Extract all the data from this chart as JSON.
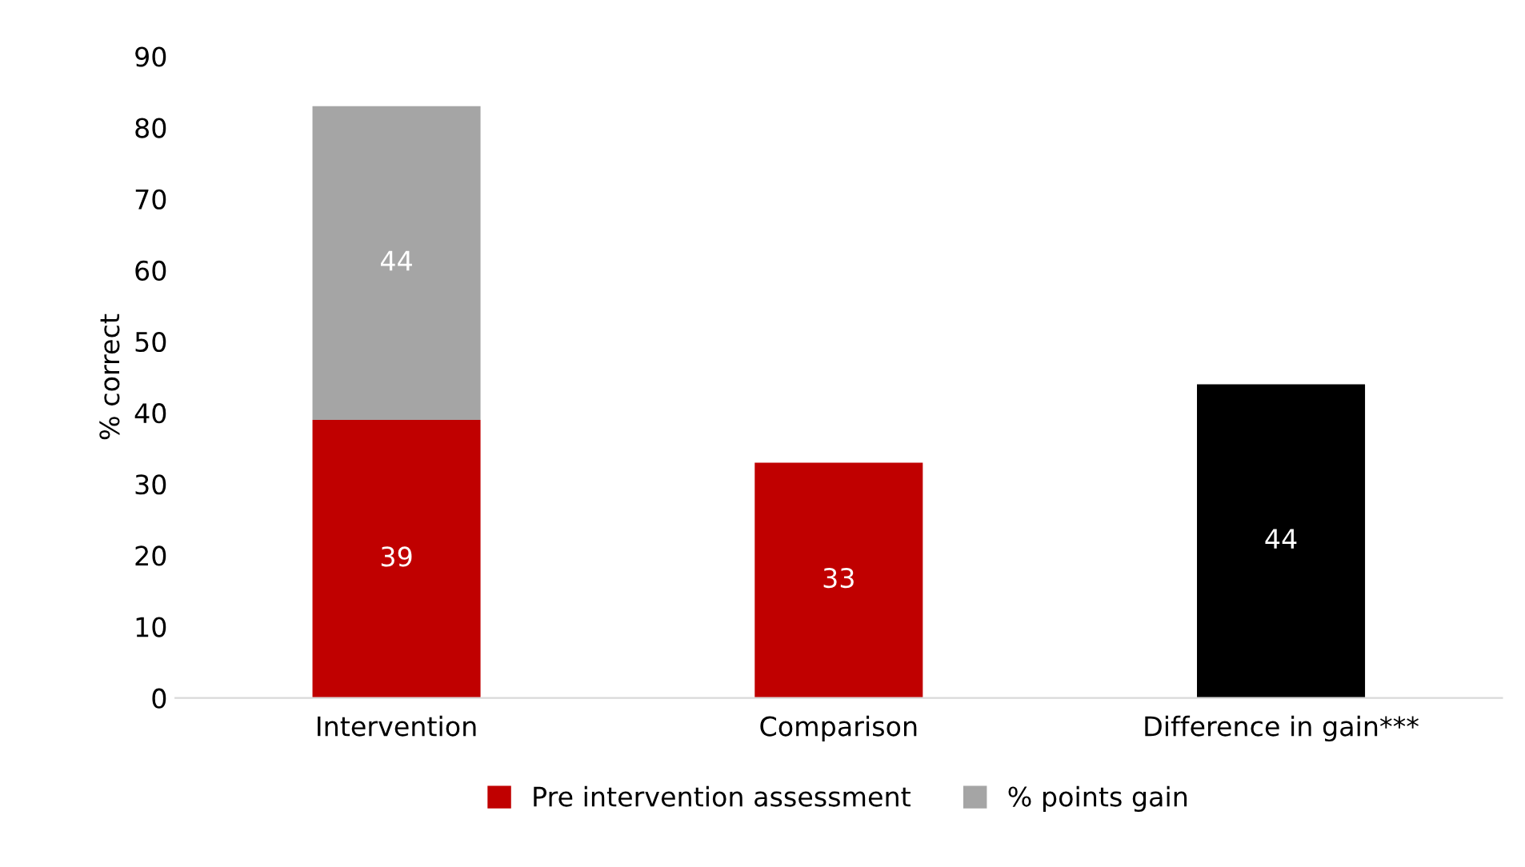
{
  "chart_data": {
    "type": "bar",
    "stacked": true,
    "ylabel": "% correct",
    "categories": [
      "Intervention",
      "Comparison",
      "Difference in gain***"
    ],
    "series": [
      {
        "name": "Pre intervention assessment",
        "color": "#c00000",
        "values": [
          39,
          33,
          null
        ]
      },
      {
        "name": "% points gain",
        "color": "#a5a5a5",
        "values": [
          44,
          null,
          null
        ]
      },
      {
        "color": "#000000",
        "values": [
          null,
          null,
          44
        ]
      }
    ],
    "ylim": [
      0,
      90
    ],
    "yticks": [
      0,
      10,
      20,
      30,
      40,
      50,
      60,
      70,
      80,
      90
    ],
    "grid": false,
    "legend": "bottom",
    "data_labels": true
  }
}
